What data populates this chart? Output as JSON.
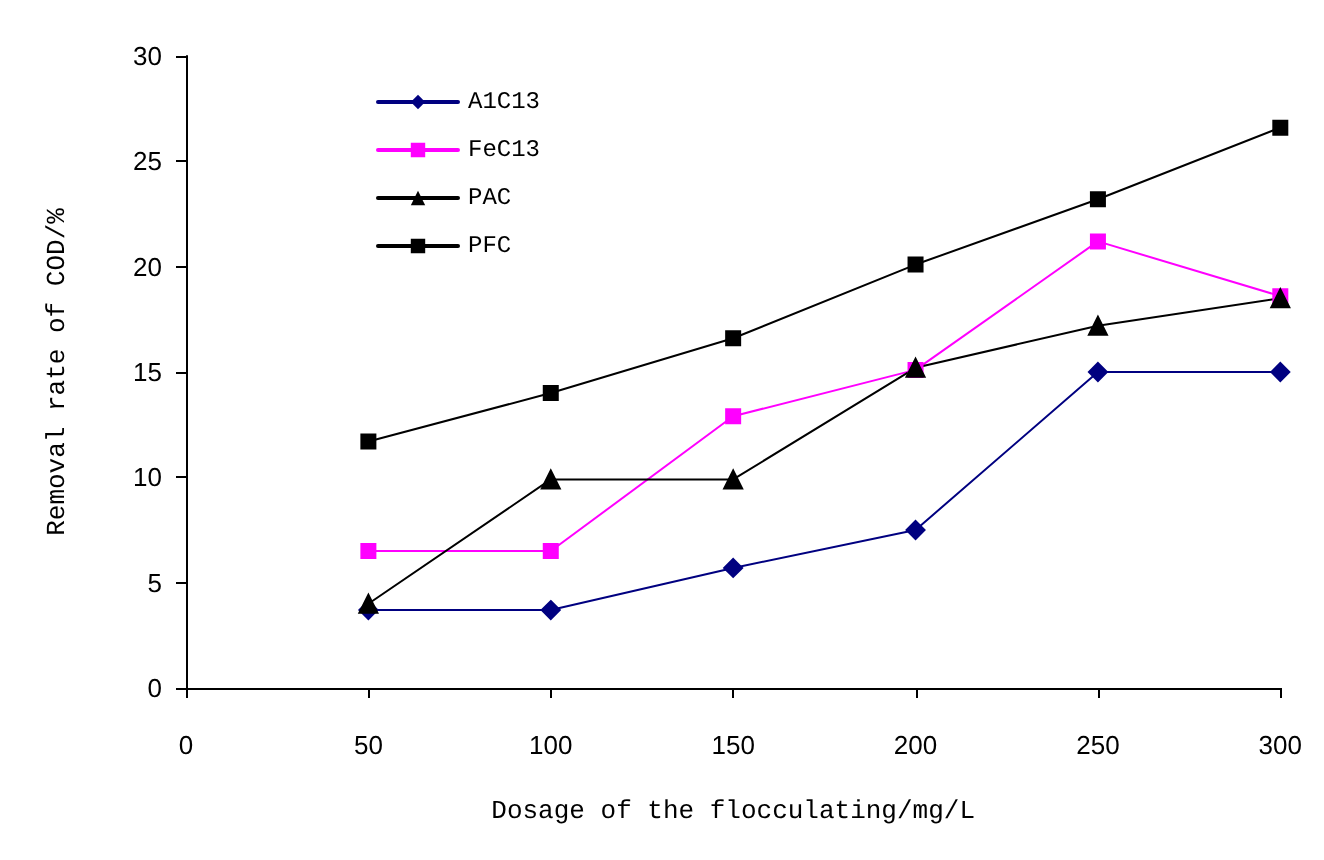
{
  "chart_data": {
    "type": "line",
    "xlabel": "Dosage of the flocculating/mg/L",
    "ylabel": "Removal rate of COD/%",
    "x": [
      50,
      100,
      150,
      200,
      250,
      300
    ],
    "series": [
      {
        "name": "A1C13",
        "color": "#000080",
        "marker": "diamond",
        "values": [
          3.7,
          3.7,
          5.7,
          7.5,
          15,
          15
        ]
      },
      {
        "name": "FeC13",
        "color": "#ff00ff",
        "marker": "square",
        "values": [
          6.5,
          6.5,
          12.9,
          15.1,
          21.2,
          18.6
        ]
      },
      {
        "name": "PAC",
        "color": "#000000",
        "marker": "triangle",
        "values": [
          4.0,
          9.9,
          9.9,
          15.2,
          17.2,
          18.5
        ]
      },
      {
        "name": "PFC",
        "color": "#000000",
        "marker": "square",
        "values": [
          11.7,
          14.0,
          16.6,
          20.1,
          23.2,
          26.6
        ]
      }
    ],
    "xlim": [
      0,
      300
    ],
    "xticks": [
      0,
      50,
      100,
      150,
      200,
      250,
      300
    ],
    "ylim": [
      0,
      30
    ],
    "yticks": [
      0,
      5,
      10,
      15,
      20,
      25,
      30
    ],
    "grid": false,
    "legend": "top left",
    "line_style": "solid"
  }
}
